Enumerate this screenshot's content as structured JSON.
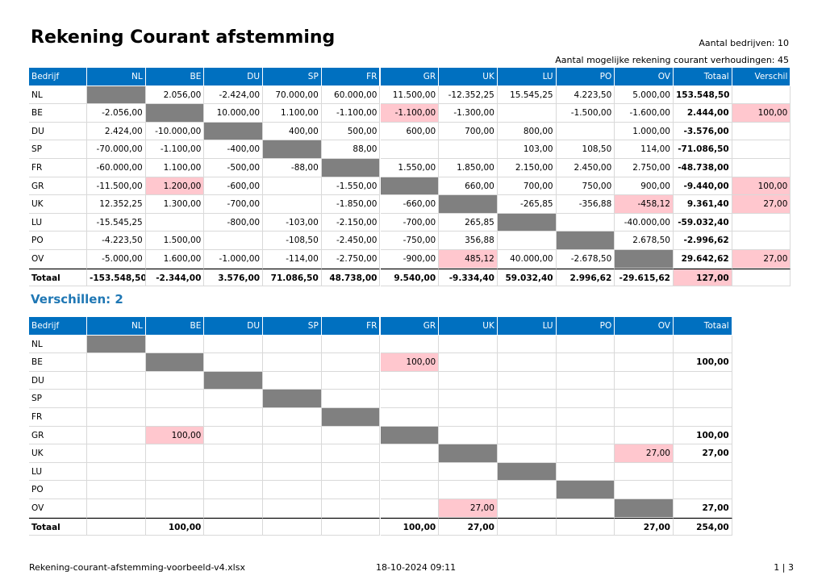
{
  "header": {
    "title": "Rekening Courant afstemming",
    "info1": "Aantal bedrijven: 10",
    "info2": "Aantal mogelijke rekening courant verhoudingen: 45"
  },
  "table1": {
    "columns": [
      "Bedrijf",
      "NL",
      "BE",
      "DU",
      "SP",
      "FR",
      "GR",
      "UK",
      "LU",
      "PO",
      "OV",
      "Totaal",
      "Verschil"
    ],
    "rows": [
      {
        "label": "NL",
        "cells": [
          null,
          "2.056,00",
          "-2.424,00",
          "70.000,00",
          "60.000,00",
          "11.500,00",
          "-12.352,25",
          "15.545,25",
          "4.223,50",
          "5.000,00",
          "153.548,50",
          null
        ]
      },
      {
        "label": "BE",
        "cells": [
          "-2.056,00",
          null,
          "10.000,00",
          "1.100,00",
          "-1.100,00",
          "-1.100,00",
          "-1.300,00",
          null,
          "-1.500,00",
          "-1.600,00",
          "2.444,00",
          "100,00"
        ]
      },
      {
        "label": "DU",
        "cells": [
          "2.424,00",
          "-10.000,00",
          null,
          "400,00",
          "500,00",
          "600,00",
          "700,00",
          "800,00",
          null,
          "1.000,00",
          "-3.576,00",
          null
        ]
      },
      {
        "label": "SP",
        "cells": [
          "-70.000,00",
          "-1.100,00",
          "-400,00",
          null,
          "88,00",
          null,
          null,
          "103,00",
          "108,50",
          "114,00",
          "-71.086,50",
          null
        ]
      },
      {
        "label": "FR",
        "cells": [
          "-60.000,00",
          "1.100,00",
          "-500,00",
          "-88,00",
          null,
          "1.550,00",
          "1.850,00",
          "2.150,00",
          "2.450,00",
          "2.750,00",
          "-48.738,00",
          null
        ]
      },
      {
        "label": "GR",
        "cells": [
          "-11.500,00",
          "1.200,00",
          "-600,00",
          null,
          "-1.550,00",
          null,
          "660,00",
          "700,00",
          "750,00",
          "900,00",
          "-9.440,00",
          "100,00"
        ]
      },
      {
        "label": "UK",
        "cells": [
          "12.352,25",
          "1.300,00",
          "-700,00",
          null,
          "-1.850,00",
          "-660,00",
          null,
          "-265,85",
          "-356,88",
          "-458,12",
          "9.361,40",
          "27,00"
        ]
      },
      {
        "label": "LU",
        "cells": [
          "-15.545,25",
          null,
          "-800,00",
          "-103,00",
          "-2.150,00",
          "-700,00",
          "265,85",
          null,
          null,
          "-40.000,00",
          "-59.032,40",
          null
        ]
      },
      {
        "label": "PO",
        "cells": [
          "-4.223,50",
          "1.500,00",
          null,
          "-108,50",
          "-2.450,00",
          "-750,00",
          "356,88",
          null,
          null,
          "2.678,50",
          "-2.996,62",
          null
        ]
      },
      {
        "label": "OV",
        "cells": [
          "-5.000,00",
          "1.600,00",
          "-1.000,00",
          "-114,00",
          "-2.750,00",
          "-900,00",
          "485,12",
          "40.000,00",
          "-2.678,50",
          null,
          "29.642,62",
          "27,00"
        ]
      },
      {
        "label": "Totaal",
        "cells": [
          "-153.548,50",
          "-2.344,00",
          "3.576,00",
          "71.086,50",
          "48.738,00",
          "9.540,00",
          "-9.334,40",
          "59.032,40",
          "2.996,62",
          "-29.615,62",
          "127,00",
          null
        ]
      }
    ]
  },
  "section": "Verschillen: 2",
  "table2": {
    "columns": [
      "Bedrijf",
      "NL",
      "BE",
      "DU",
      "SP",
      "FR",
      "GR",
      "UK",
      "LU",
      "PO",
      "OV",
      "Totaal"
    ],
    "rows": [
      {
        "label": "NL",
        "cells": [
          null,
          null,
          null,
          null,
          null,
          null,
          null,
          null,
          null,
          null,
          null
        ]
      },
      {
        "label": "BE",
        "cells": [
          null,
          null,
          null,
          null,
          null,
          "100,00",
          null,
          null,
          null,
          null,
          "100,00"
        ]
      },
      {
        "label": "DU",
        "cells": [
          null,
          null,
          null,
          null,
          null,
          null,
          null,
          null,
          null,
          null,
          null
        ]
      },
      {
        "label": "SP",
        "cells": [
          null,
          null,
          null,
          null,
          null,
          null,
          null,
          null,
          null,
          null,
          null
        ]
      },
      {
        "label": "FR",
        "cells": [
          null,
          null,
          null,
          null,
          null,
          null,
          null,
          null,
          null,
          null,
          null
        ]
      },
      {
        "label": "GR",
        "cells": [
          null,
          "100,00",
          null,
          null,
          null,
          null,
          null,
          null,
          null,
          null,
          "100,00"
        ]
      },
      {
        "label": "UK",
        "cells": [
          null,
          null,
          null,
          null,
          null,
          null,
          null,
          null,
          null,
          "27,00",
          "27,00"
        ]
      },
      {
        "label": "LU",
        "cells": [
          null,
          null,
          null,
          null,
          null,
          null,
          null,
          null,
          null,
          null,
          null
        ]
      },
      {
        "label": "PO",
        "cells": [
          null,
          null,
          null,
          null,
          null,
          null,
          null,
          null,
          null,
          null,
          null
        ]
      },
      {
        "label": "OV",
        "cells": [
          null,
          null,
          null,
          null,
          null,
          null,
          "27,00",
          null,
          null,
          null,
          "27,00"
        ]
      },
      {
        "label": "Totaal",
        "cells": [
          null,
          "100,00",
          null,
          null,
          null,
          "100,00",
          "27,00",
          null,
          null,
          "27,00",
          "254,00"
        ]
      }
    ]
  },
  "footer": {
    "file": "Rekening-courant-afstemming-voorbeeld-v4.xlsx",
    "date": "18-10-2024 09:11",
    "page": "1 | 3"
  }
}
